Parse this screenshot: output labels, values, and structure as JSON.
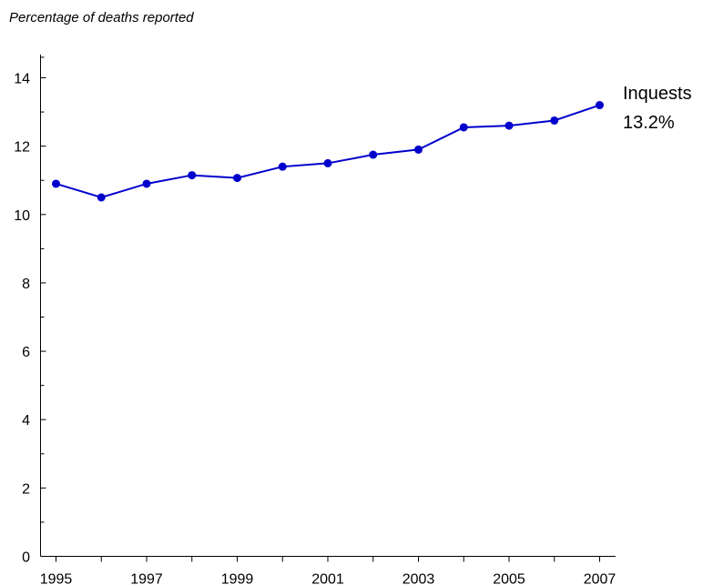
{
  "chart_data": {
    "type": "line",
    "title": "",
    "ylabel": "Percentage of deaths reported",
    "xlabel": "",
    "x": [
      1995,
      1996,
      1997,
      1998,
      1999,
      2000,
      2001,
      2002,
      2003,
      2004,
      2005,
      2006,
      2007
    ],
    "x_tick_labels": [
      "1995",
      "1997",
      "1999",
      "2001",
      "2003",
      "2005",
      "2007"
    ],
    "y_tick_labels": [
      "0",
      "2",
      "4",
      "6",
      "8",
      "10",
      "12",
      "14"
    ],
    "ylim": [
      0,
      14
    ],
    "grid": false,
    "series": [
      {
        "name": "Inquests",
        "values": [
          10.9,
          10.5,
          10.9,
          11.15,
          11.07,
          11.4,
          11.5,
          11.75,
          11.9,
          12.55,
          12.6,
          12.75,
          13.2
        ],
        "end_label": "13.2%",
        "color": "#0000cc"
      }
    ]
  }
}
